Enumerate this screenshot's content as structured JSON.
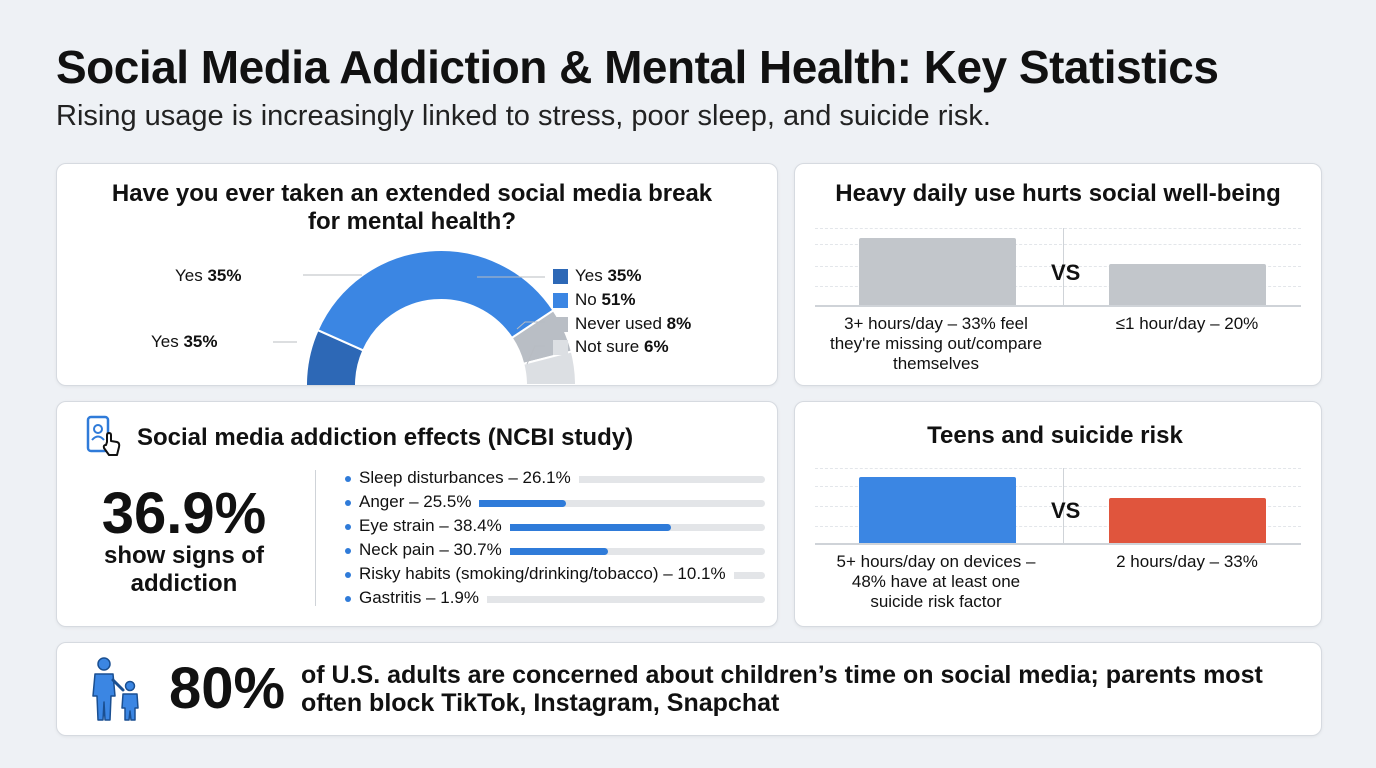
{
  "header": {
    "title": "Social Media Addiction & Mental Health: Key Statistics",
    "subtitle": "Rising usage is increasingly linked to stress, poor sleep, and suicide risk."
  },
  "break_card": {
    "title_line1": "Have you ever taken an extended social media break",
    "title_line2": "for mental health?",
    "left_label_top": {
      "text": "Yes ",
      "value": "35%"
    },
    "left_label_bottom": {
      "text": "Yes ",
      "value": "35%"
    }
  },
  "wellbeing_card": {
    "title": "Heavy daily use hurts social well-being",
    "vs": "VS",
    "caption_left_line1": "3+ hours/day – 33% feel",
    "caption_left_line2": "they're missing out/compare",
    "caption_left_line3": "themselves",
    "caption_right": "≤1 hour/day – 20%"
  },
  "effects_card": {
    "title": "Social media addiction effects (NCBI study)",
    "big_value": "36.9%",
    "big_caption_line1": "show signs of",
    "big_caption_line2": "addiction"
  },
  "suicide_card": {
    "title": "Teens and suicide risk",
    "vs": "VS",
    "caption_left_line1": "5+ hours/day on devices –",
    "caption_left_line2": "48% have at least one",
    "caption_left_line3": "suicide risk factor",
    "caption_right": "2 hours/day – 33%"
  },
  "bottom_banner": {
    "value": "80%",
    "text_line1": "of U.S. adults are concerned about children’s time on social media; parents most",
    "text_line2": "often block TikTok, Instagram, Snapchat"
  },
  "chart_data": [
    {
      "type": "pie",
      "title": "Have you ever taken an extended social media break for mental health?",
      "series": [
        {
          "name": "Yes",
          "label": "Yes ",
          "value_label": "35%",
          "value": 35,
          "color": "#2d68b6"
        },
        {
          "name": "No",
          "label": "No ",
          "value_label": "51%",
          "value": 51,
          "color": "#3b86e3"
        },
        {
          "name": "Never used",
          "label": "Never used ",
          "value_label": "8%",
          "value": 8,
          "color": "#b9bec5"
        },
        {
          "name": "Not sure",
          "label": "Not sure ",
          "value_label": "6%",
          "value": 6,
          "color": "#dcdfe3"
        }
      ]
    },
    {
      "type": "bar",
      "title": "Heavy daily use hurts social well-being",
      "categories": [
        "3+ hours/day",
        "≤1 hour/day"
      ],
      "values": [
        33,
        20
      ],
      "colors": [
        "#c2c6cb",
        "#c2c6cb"
      ],
      "ylim": [
        0,
        40
      ]
    },
    {
      "type": "bar",
      "title": "Social media addiction effects (NCBI study)",
      "categories": [
        "Sleep disturbances",
        "Anger",
        "Eye strain",
        "Neck pain",
        "Risky habits (smoking/drinking/tobacco)",
        "Gastritis"
      ],
      "values": [
        26.1,
        25.5,
        38.4,
        30.7,
        10.1,
        1.9
      ],
      "labels": [
        "Sleep disturbances – 26.1%",
        "Anger – 25.5%",
        "Eye strain – 38.4%",
        "Neck pain – 30.7%",
        "Risky habits (smoking/drinking/tobacco) – 10.1%",
        "Gastritis – 1.9%"
      ],
      "xlim": [
        0,
        50
      ]
    },
    {
      "type": "bar",
      "title": "Teens and suicide risk",
      "categories": [
        "5+ hours/day on devices",
        "2 hours/day"
      ],
      "values": [
        48,
        33
      ],
      "colors": [
        "#3b86e3",
        "#e0553d"
      ],
      "ylim": [
        0,
        50
      ]
    }
  ]
}
